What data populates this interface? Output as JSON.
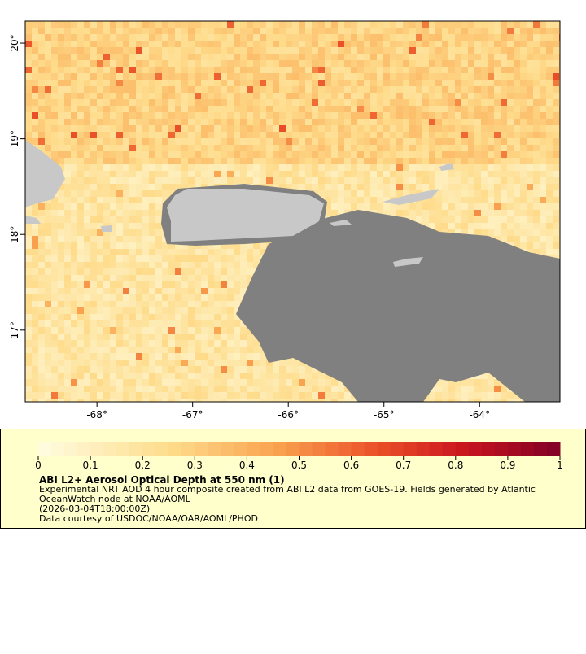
{
  "chart_data": {
    "type": "map",
    "xlim": [
      -68.75,
      -63.16
    ],
    "ylim": [
      16.25,
      20.23
    ],
    "xticks": [
      {
        "value": -68,
        "label": "-68°"
      },
      {
        "value": -67,
        "label": "-67°"
      },
      {
        "value": -66,
        "label": "-66°"
      },
      {
        "value": -65,
        "label": "-65°"
      },
      {
        "value": -64,
        "label": "-64°"
      }
    ],
    "yticks": [
      {
        "value": 17,
        "label": "17°"
      },
      {
        "value": 18,
        "label": "18°"
      },
      {
        "value": 19,
        "label": "19°"
      },
      {
        "value": 20,
        "label": "20°"
      }
    ],
    "colorbar": {
      "lim": [
        0,
        1
      ],
      "ticks": [
        0,
        0.1,
        0.2,
        0.3,
        0.4,
        0.5,
        0.6,
        0.7,
        0.8,
        0.9,
        1
      ]
    },
    "title": "ABI L2+ Aerosol Optical Depth at 550 nm (1)",
    "description": [
      "Experimental NRT AOD 4 hour composite created from ABI L2 data from GOES-19. Fields generated by Atlantic",
      "OceanWatch node at NOAA/AOML",
      "(2026-03-04T18:00:00Z)",
      "Data courtesy of USDOC/NOAA/OAR/AOML/PHOD"
    ]
  }
}
